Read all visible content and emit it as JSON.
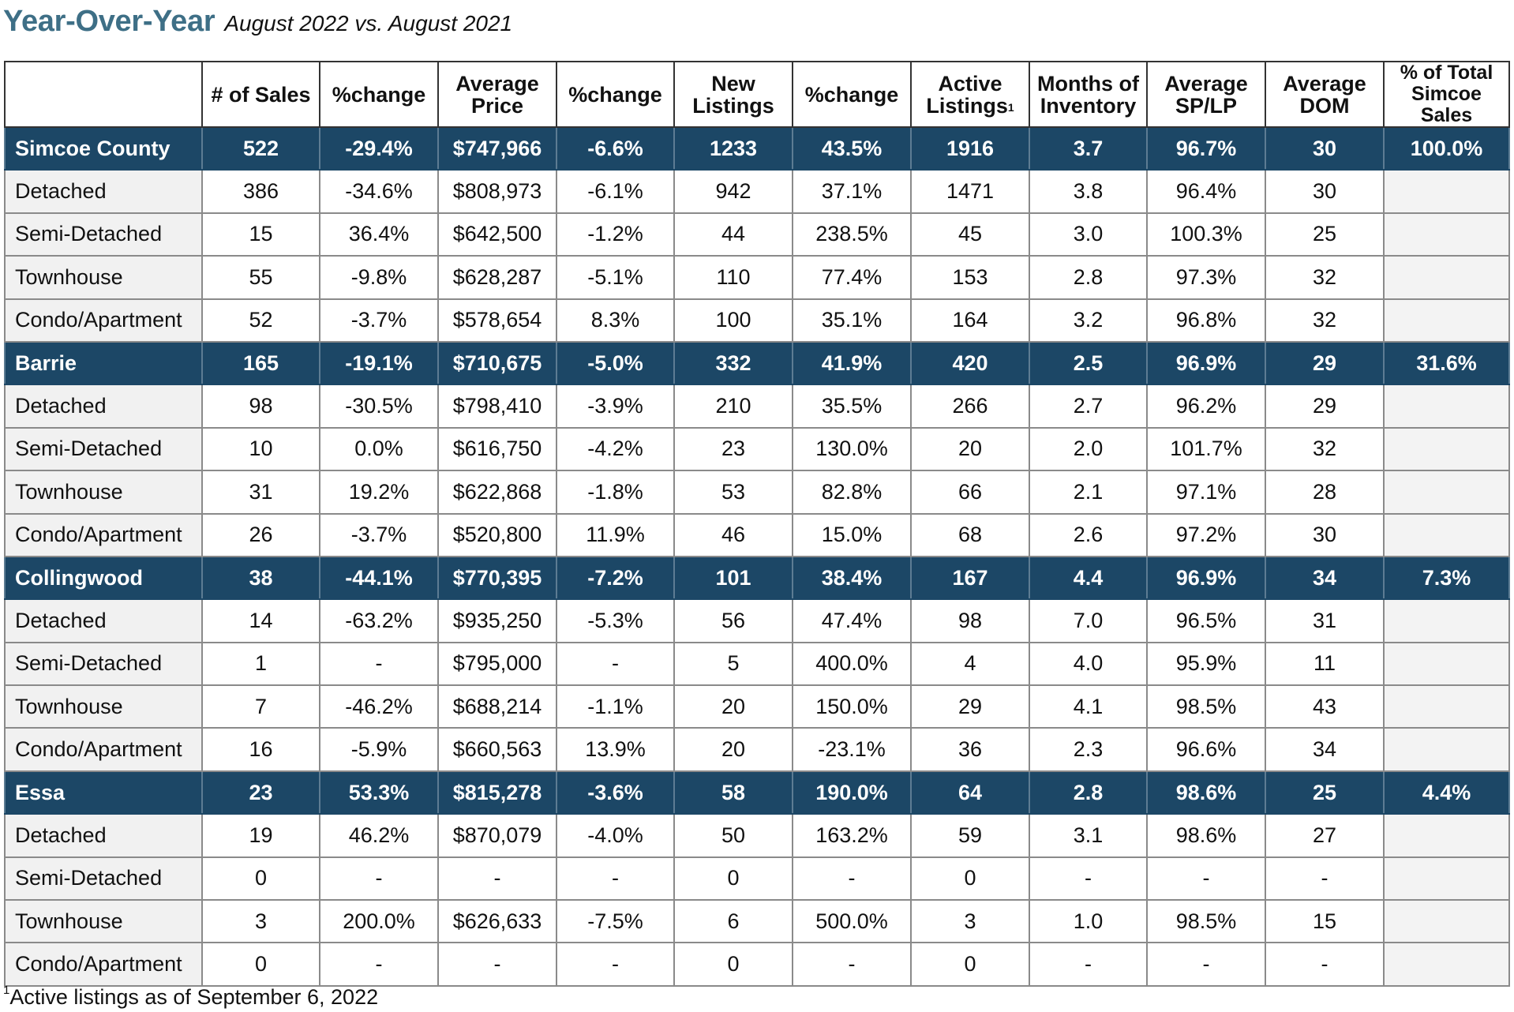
{
  "header": {
    "title": "Year-Over-Year",
    "subtitle": "August 2022 vs. August 2021"
  },
  "columns": [
    "",
    "# of Sales",
    "%change",
    "Average Price",
    "%change",
    "New Listings",
    "%change",
    "Active Listings",
    "Months of Inventory",
    "Average SP/LP",
    "Average DOM",
    "% of Total Simcoe Sales"
  ],
  "active_listings_footnote_marker": "1",
  "rows": [
    {
      "kind": "group",
      "cells": [
        "Simcoe County",
        "522",
        "-29.4%",
        "$747,966",
        "-6.6%",
        "1233",
        "43.5%",
        "1916",
        "3.7",
        "96.7%",
        "30",
        "100.0%"
      ]
    },
    {
      "kind": "sub",
      "cells": [
        "Detached",
        "386",
        "-34.6%",
        "$808,973",
        "-6.1%",
        "942",
        "37.1%",
        "1471",
        "3.8",
        "96.4%",
        "30",
        ""
      ]
    },
    {
      "kind": "sub",
      "cells": [
        "Semi-Detached",
        "15",
        "36.4%",
        "$642,500",
        "-1.2%",
        "44",
        "238.5%",
        "45",
        "3.0",
        "100.3%",
        "25",
        ""
      ]
    },
    {
      "kind": "sub",
      "cells": [
        "Townhouse",
        "55",
        "-9.8%",
        "$628,287",
        "-5.1%",
        "110",
        "77.4%",
        "153",
        "2.8",
        "97.3%",
        "32",
        ""
      ]
    },
    {
      "kind": "sub",
      "cells": [
        "Condo/Apartment",
        "52",
        "-3.7%",
        "$578,654",
        "8.3%",
        "100",
        "35.1%",
        "164",
        "3.2",
        "96.8%",
        "32",
        ""
      ]
    },
    {
      "kind": "group",
      "cells": [
        "Barrie",
        "165",
        "-19.1%",
        "$710,675",
        "-5.0%",
        "332",
        "41.9%",
        "420",
        "2.5",
        "96.9%",
        "29",
        "31.6%"
      ]
    },
    {
      "kind": "sub",
      "cells": [
        "Detached",
        "98",
        "-30.5%",
        "$798,410",
        "-3.9%",
        "210",
        "35.5%",
        "266",
        "2.7",
        "96.2%",
        "29",
        ""
      ]
    },
    {
      "kind": "sub",
      "cells": [
        "Semi-Detached",
        "10",
        "0.0%",
        "$616,750",
        "-4.2%",
        "23",
        "130.0%",
        "20",
        "2.0",
        "101.7%",
        "32",
        ""
      ]
    },
    {
      "kind": "sub",
      "cells": [
        "Townhouse",
        "31",
        "19.2%",
        "$622,868",
        "-1.8%",
        "53",
        "82.8%",
        "66",
        "2.1",
        "97.1%",
        "28",
        ""
      ]
    },
    {
      "kind": "sub",
      "cells": [
        "Condo/Apartment",
        "26",
        "-3.7%",
        "$520,800",
        "11.9%",
        "46",
        "15.0%",
        "68",
        "2.6",
        "97.2%",
        "30",
        ""
      ]
    },
    {
      "kind": "group",
      "cells": [
        "Collingwood",
        "38",
        "-44.1%",
        "$770,395",
        "-7.2%",
        "101",
        "38.4%",
        "167",
        "4.4",
        "96.9%",
        "34",
        "7.3%"
      ]
    },
    {
      "kind": "sub",
      "cells": [
        "Detached",
        "14",
        "-63.2%",
        "$935,250",
        "-5.3%",
        "56",
        "47.4%",
        "98",
        "7.0",
        "96.5%",
        "31",
        ""
      ]
    },
    {
      "kind": "sub",
      "cells": [
        "Semi-Detached",
        "1",
        "-",
        "$795,000",
        "-",
        "5",
        "400.0%",
        "4",
        "4.0",
        "95.9%",
        "11",
        ""
      ]
    },
    {
      "kind": "sub",
      "cells": [
        "Townhouse",
        "7",
        "-46.2%",
        "$688,214",
        "-1.1%",
        "20",
        "150.0%",
        "29",
        "4.1",
        "98.5%",
        "43",
        ""
      ]
    },
    {
      "kind": "sub",
      "cells": [
        "Condo/Apartment",
        "16",
        "-5.9%",
        "$660,563",
        "13.9%",
        "20",
        "-23.1%",
        "36",
        "2.3",
        "96.6%",
        "34",
        ""
      ]
    },
    {
      "kind": "group",
      "cells": [
        "Essa",
        "23",
        "53.3%",
        "$815,278",
        "-3.6%",
        "58",
        "190.0%",
        "64",
        "2.8",
        "98.6%",
        "25",
        "4.4%"
      ]
    },
    {
      "kind": "sub",
      "cells": [
        "Detached",
        "19",
        "46.2%",
        "$870,079",
        "-4.0%",
        "50",
        "163.2%",
        "59",
        "3.1",
        "98.6%",
        "27",
        ""
      ]
    },
    {
      "kind": "sub",
      "cells": [
        "Semi-Detached",
        "0",
        "-",
        "-",
        "-",
        "0",
        "-",
        "0",
        "-",
        "-",
        "-",
        ""
      ]
    },
    {
      "kind": "sub",
      "cells": [
        "Townhouse",
        "3",
        "200.0%",
        "$626,633",
        "-7.5%",
        "6",
        "500.0%",
        "3",
        "1.0",
        "98.5%",
        "15",
        ""
      ]
    },
    {
      "kind": "sub",
      "cells": [
        "Condo/Apartment",
        "0",
        "-",
        "-",
        "-",
        "0",
        "-",
        "0",
        "-",
        "-",
        "-",
        ""
      ]
    }
  ],
  "footnote": {
    "marker": "1",
    "text": "Active listings as of September 6, 2022"
  }
}
